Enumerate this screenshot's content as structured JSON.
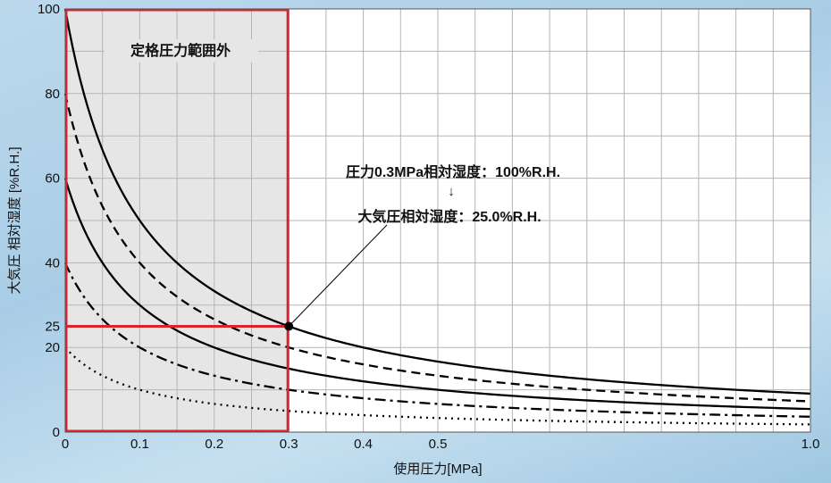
{
  "chart_data": {
    "type": "line",
    "xlabel": "使用圧力[MPa]",
    "ylabel": "大気圧 相対湿度 [%R.H.]",
    "xlim": [
      0,
      1.0
    ],
    "ylim": [
      0,
      100
    ],
    "x_ticks": [
      {
        "value": 0,
        "label": "0"
      },
      {
        "value": 0.1,
        "label": "0.1"
      },
      {
        "value": 0.2,
        "label": "0.2"
      },
      {
        "value": 0.3,
        "label": "0.3"
      },
      {
        "value": 0.4,
        "label": "0.4"
      },
      {
        "value": 0.5,
        "label": "0.5"
      },
      {
        "value": 1.0,
        "label": "1.0"
      }
    ],
    "y_ticks": [
      {
        "value": 0,
        "label": "0"
      },
      {
        "value": 20,
        "label": "20"
      },
      {
        "value": 25,
        "label": "25"
      },
      {
        "value": 40,
        "label": "40"
      },
      {
        "value": 60,
        "label": "60"
      },
      {
        "value": 80,
        "label": "80"
      },
      {
        "value": 100,
        "label": "100"
      }
    ],
    "grid": true,
    "series": [
      {
        "style": "solid",
        "initial_rh": 100
      },
      {
        "style": "dashed",
        "initial_rh": 80
      },
      {
        "style": "solid",
        "initial_rh": 60
      },
      {
        "style": "dashdot",
        "initial_rh": 40
      },
      {
        "style": "dotted",
        "initial_rh": 20
      }
    ],
    "out_of_range_region": {
      "x_from": 0,
      "x_to": 0.3,
      "label": "定格圧力範囲外"
    },
    "highlight_point": {
      "x": 0.3,
      "y": 25
    },
    "annotation": {
      "line1": "圧力0.3MPa相対湿度：100%R.H.",
      "arrow": "↓",
      "line2": "大気圧相対湿度：25.0%R.H."
    },
    "colors": {
      "highlight": "#d9232d",
      "region_fill": "#e6e6e6",
      "grid": "#b5b5b5",
      "line": "#000000"
    }
  }
}
